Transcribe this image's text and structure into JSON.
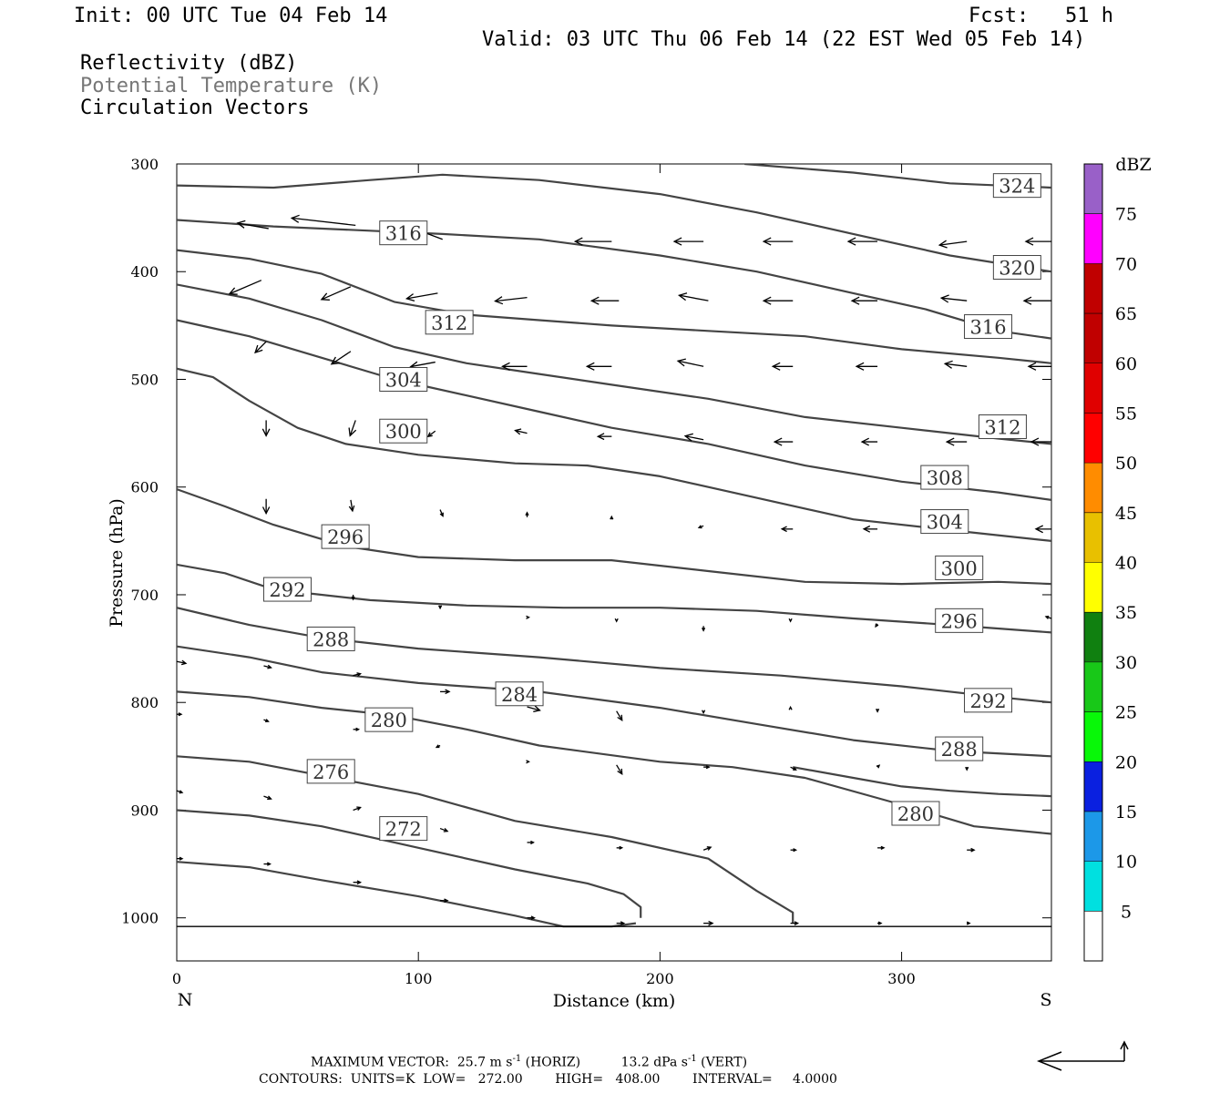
{
  "header": {
    "init": "Init: 00 UTC Tue 04 Feb 14",
    "fcst": "Fcst:   51 h",
    "valid": "Valid: 03 UTC Thu 06 Feb 14 (22 EST Wed 05 Feb 14)",
    "fields": [
      "Reflectivity (dBZ)",
      "Potential Temperature (K)",
      "Circulation Vectors"
    ]
  },
  "footer": {
    "max_vector_label": "MAXIMUM VECTOR:",
    "horiz": "25.7 m s",
    "horiz_unit": "(HORIZ)",
    "vert": "13.2 dPa s",
    "vert_unit": "(VERT)",
    "superscript": "-1",
    "contours": "CONTOURS:  UNITS=K  LOW=   272.00        HIGH=   408.00        INTERVAL=     4.0000"
  },
  "chart_data": {
    "type": "line",
    "subtype": "vertical cross-section (isentropes + circulation vectors + reflectivity)",
    "xlabel": "Distance (km)",
    "ylabel": "Pressure (hPa)",
    "xlim": [
      0,
      362
    ],
    "ylim": [
      1040,
      300
    ],
    "x_ticks": [
      0,
      100,
      200,
      300
    ],
    "y_ticks": [
      300,
      400,
      500,
      600,
      700,
      800,
      900,
      1000
    ],
    "x_end_labels": {
      "left": "N",
      "right": "S"
    },
    "contour_units": "K",
    "contour_interval": 4,
    "series": [
      {
        "name": "272",
        "x": [
          0,
          30,
          60,
          100,
          140,
          160,
          180,
          190
        ],
        "y": [
          948,
          953,
          965,
          980,
          998,
          1008,
          1008,
          1005
        ]
      },
      {
        "name": "276",
        "x": [
          0,
          30,
          60,
          100,
          140,
          170,
          185,
          192,
          192
        ],
        "y": [
          900,
          905,
          915,
          935,
          955,
          968,
          978,
          990,
          1000
        ]
      },
      {
        "name": "280",
        "x": [
          0,
          30,
          60,
          100,
          140,
          180,
          220,
          240,
          255,
          255
        ],
        "y": [
          850,
          855,
          868,
          885,
          910,
          925,
          945,
          975,
          995,
          1005
        ]
      },
      {
        "name": "280",
        "x": [
          255,
          280,
          300,
          320,
          340,
          362
        ],
        "y": [
          860,
          870,
          878,
          882,
          885,
          887
        ]
      },
      {
        "name": "284",
        "x": [
          0,
          30,
          60,
          90,
          120,
          150,
          200,
          230,
          260,
          300,
          330,
          362
        ],
        "y": [
          790,
          795,
          805,
          812,
          825,
          840,
          855,
          860,
          870,
          895,
          915,
          922
        ]
      },
      {
        "name": "288",
        "x": [
          0,
          30,
          60,
          100,
          150,
          200,
          240,
          280,
          320,
          362
        ],
        "y": [
          748,
          758,
          772,
          782,
          790,
          805,
          820,
          835,
          845,
          850
        ]
      },
      {
        "name": "292",
        "x": [
          0,
          30,
          60,
          100,
          150,
          200,
          250,
          300,
          340,
          362
        ],
        "y": [
          712,
          728,
          740,
          750,
          758,
          768,
          775,
          785,
          795,
          800
        ]
      },
      {
        "name": "296",
        "x": [
          0,
          20,
          40,
          80,
          120,
          160,
          200,
          240,
          280,
          320,
          362
        ],
        "y": [
          672,
          680,
          695,
          705,
          710,
          712,
          712,
          715,
          722,
          728,
          735
        ]
      },
      {
        "name": "300",
        "x": [
          0,
          20,
          40,
          70,
          100,
          140,
          180,
          220,
          260,
          300,
          340,
          362
        ],
        "y": [
          602,
          618,
          635,
          655,
          665,
          668,
          668,
          678,
          688,
          690,
          688,
          690
        ]
      },
      {
        "name": "304",
        "x": [
          0,
          15,
          30,
          50,
          70,
          100,
          140,
          170,
          200,
          240,
          280,
          320,
          362
        ],
        "y": [
          490,
          498,
          520,
          545,
          560,
          570,
          578,
          580,
          590,
          610,
          630,
          640,
          650
        ]
      },
      {
        "name": "308",
        "x": [
          0,
          30,
          60,
          90,
          120,
          150,
          180,
          220,
          260,
          300,
          340,
          362
        ],
        "y": [
          445,
          460,
          480,
          500,
          515,
          530,
          545,
          560,
          580,
          595,
          605,
          612
        ]
      },
      {
        "name": "312",
        "x": [
          0,
          30,
          60,
          90,
          120,
          150,
          180,
          220,
          260,
          300,
          340,
          362
        ],
        "y": [
          412,
          425,
          445,
          470,
          485,
          495,
          505,
          518,
          535,
          545,
          555,
          560
        ]
      },
      {
        "name": "316",
        "x": [
          0,
          30,
          60,
          90,
          120,
          150,
          180,
          220,
          260,
          300,
          340,
          362
        ],
        "y": [
          380,
          388,
          402,
          428,
          440,
          445,
          450,
          455,
          460,
          472,
          480,
          485
        ]
      },
      {
        "name": "316",
        "x": [
          0,
          40,
          80,
          110,
          150,
          200,
          240,
          280,
          310,
          340,
          362
        ],
        "y": [
          352,
          358,
          362,
          365,
          370,
          385,
          400,
          420,
          435,
          455,
          462
        ]
      },
      {
        "name": "320",
        "x": [
          0,
          40,
          80,
          110,
          150,
          200,
          240,
          280,
          320,
          362
        ],
        "y": [
          320,
          322,
          315,
          310,
          315,
          328,
          345,
          365,
          385,
          400
        ]
      },
      {
        "name": "324",
        "x": [
          235,
          280,
          320,
          362
        ],
        "y": [
          300,
          308,
          318,
          322
        ]
      }
    ],
    "contour_labels": [
      {
        "text": "324",
        "x": 338,
        "y": 320
      },
      {
        "text": "320",
        "x": 338,
        "y": 396
      },
      {
        "text": "316",
        "x": 84,
        "y": 364
      },
      {
        "text": "316",
        "x": 326,
        "y": 451
      },
      {
        "text": "312",
        "x": 103,
        "y": 447
      },
      {
        "text": "312",
        "x": 332,
        "y": 544
      },
      {
        "text": "308",
        "x": 308,
        "y": 591
      },
      {
        "text": "304",
        "x": 84,
        "y": 500
      },
      {
        "text": "304",
        "x": 308,
        "y": 632
      },
      {
        "text": "300",
        "x": 84,
        "y": 548
      },
      {
        "text": "300",
        "x": 314,
        "y": 675
      },
      {
        "text": "296",
        "x": 60,
        "y": 646
      },
      {
        "text": "296",
        "x": 314,
        "y": 724
      },
      {
        "text": "292",
        "x": 36,
        "y": 695
      },
      {
        "text": "292",
        "x": 326,
        "y": 798
      },
      {
        "text": "288",
        "x": 54,
        "y": 741
      },
      {
        "text": "288",
        "x": 314,
        "y": 843
      },
      {
        "text": "284",
        "x": 132,
        "y": 792
      },
      {
        "text": "280",
        "x": 78,
        "y": 816
      },
      {
        "text": "280",
        "x": 296,
        "y": 903
      },
      {
        "text": "276",
        "x": 54,
        "y": 864
      },
      {
        "text": "272",
        "x": 84,
        "y": 917
      }
    ],
    "vectors": [
      {
        "x": 74,
        "y": 357,
        "dx": -70,
        "dy": -8
      },
      {
        "x": 38,
        "y": 360,
        "dx": -34,
        "dy": -6
      },
      {
        "x": 110,
        "y": 370,
        "dx": -40,
        "dy": -15
      },
      {
        "x": 180,
        "y": 372,
        "dx": -40,
        "dy": 0
      },
      {
        "x": 218,
        "y": 372,
        "dx": -32,
        "dy": 0
      },
      {
        "x": 255,
        "y": 372,
        "dx": -32,
        "dy": 0
      },
      {
        "x": 290,
        "y": 372,
        "dx": -32,
        "dy": 0
      },
      {
        "x": 327,
        "y": 372,
        "dx": -30,
        "dy": 4
      },
      {
        "x": 362,
        "y": 372,
        "dx": -28,
        "dy": 0
      },
      {
        "x": 35,
        "y": 408,
        "dx": -35,
        "dy": 15
      },
      {
        "x": 72,
        "y": 414,
        "dx": -32,
        "dy": 14
      },
      {
        "x": 108,
        "y": 420,
        "dx": -34,
        "dy": 6
      },
      {
        "x": 145,
        "y": 424,
        "dx": -35,
        "dy": 4
      },
      {
        "x": 183,
        "y": 427,
        "dx": -30,
        "dy": 0
      },
      {
        "x": 220,
        "y": 427,
        "dx": -32,
        "dy": -6
      },
      {
        "x": 255,
        "y": 427,
        "dx": -32,
        "dy": 0
      },
      {
        "x": 290,
        "y": 427,
        "dx": -28,
        "dy": 0
      },
      {
        "x": 327,
        "y": 427,
        "dx": -28,
        "dy": -3
      },
      {
        "x": 362,
        "y": 427,
        "dx": -30,
        "dy": 0
      },
      {
        "x": 37,
        "y": 465,
        "dx": -12,
        "dy": 12
      },
      {
        "x": 72,
        "y": 474,
        "dx": -21,
        "dy": 14
      },
      {
        "x": 107,
        "y": 484,
        "dx": -27,
        "dy": 5
      },
      {
        "x": 145,
        "y": 488,
        "dx": -27,
        "dy": 0
      },
      {
        "x": 180,
        "y": 488,
        "dx": -27,
        "dy": 0
      },
      {
        "x": 218,
        "y": 488,
        "dx": -28,
        "dy": -6
      },
      {
        "x": 255,
        "y": 488,
        "dx": -22,
        "dy": 0
      },
      {
        "x": 290,
        "y": 488,
        "dx": -23,
        "dy": 0
      },
      {
        "x": 327,
        "y": 488,
        "dx": -24,
        "dy": -3
      },
      {
        "x": 362,
        "y": 488,
        "dx": -25,
        "dy": 0
      },
      {
        "x": 37,
        "y": 538,
        "dx": 0,
        "dy": 17
      },
      {
        "x": 74,
        "y": 538,
        "dx": -6,
        "dy": 17
      },
      {
        "x": 107,
        "y": 548,
        "dx": -8,
        "dy": 6
      },
      {
        "x": 145,
        "y": 550,
        "dx": -13,
        "dy": -3
      },
      {
        "x": 180,
        "y": 553,
        "dx": -15,
        "dy": 0
      },
      {
        "x": 218,
        "y": 556,
        "dx": -20,
        "dy": -4
      },
      {
        "x": 255,
        "y": 558,
        "dx": -20,
        "dy": 0
      },
      {
        "x": 290,
        "y": 558,
        "dx": -17,
        "dy": 0
      },
      {
        "x": 327,
        "y": 558,
        "dx": -22,
        "dy": 0
      },
      {
        "x": 362,
        "y": 558,
        "dx": -22,
        "dy": 0
      },
      {
        "x": 37,
        "y": 611,
        "dx": 0,
        "dy": 16
      },
      {
        "x": 72,
        "y": 612,
        "dx": 2,
        "dy": 12
      },
      {
        "x": 109,
        "y": 621,
        "dx": 3,
        "dy": 7
      },
      {
        "x": 145,
        "y": 628,
        "dx": 0,
        "dy": -5
      },
      {
        "x": 180,
        "y": 630,
        "dx": 0,
        "dy": -3
      },
      {
        "x": 218,
        "y": 636,
        "dx": -5,
        "dy": 2
      },
      {
        "x": 255,
        "y": 639,
        "dx": -12,
        "dy": 0
      },
      {
        "x": 290,
        "y": 639,
        "dx": -15,
        "dy": 0
      },
      {
        "x": 327,
        "y": 639,
        "dx": -22,
        "dy": 0
      },
      {
        "x": 362,
        "y": 639,
        "dx": -17,
        "dy": 0
      },
      {
        "x": 73,
        "y": 700,
        "dx": 0,
        "dy": 5
      },
      {
        "x": 109,
        "y": 710,
        "dx": 0,
        "dy": 3
      },
      {
        "x": 145,
        "y": 721,
        "dx": 2,
        "dy": 0
      },
      {
        "x": 182,
        "y": 723,
        "dx": 0,
        "dy": 2
      },
      {
        "x": 218,
        "y": 729,
        "dx": 0,
        "dy": 5
      },
      {
        "x": 254,
        "y": 723,
        "dx": 0,
        "dy": 2
      },
      {
        "x": 290,
        "y": 727,
        "dx": -2,
        "dy": 3
      },
      {
        "x": 362,
        "y": 722,
        "dx": -6,
        "dy": -2
      },
      {
        "x": 0,
        "y": 762,
        "dx": 10,
        "dy": 2
      },
      {
        "x": 36,
        "y": 766,
        "dx": 8,
        "dy": 2
      },
      {
        "x": 73,
        "y": 775,
        "dx": 8,
        "dy": -2
      },
      {
        "x": 109,
        "y": 790,
        "dx": 10,
        "dy": 0
      },
      {
        "x": 145,
        "y": 804,
        "dx": 14,
        "dy": 4
      },
      {
        "x": 182,
        "y": 808,
        "dx": 6,
        "dy": 10
      },
      {
        "x": 218,
        "y": 808,
        "dx": 0,
        "dy": 2
      },
      {
        "x": 254,
        "y": 806,
        "dx": 0,
        "dy": -2
      },
      {
        "x": 290,
        "y": 806,
        "dx": 0,
        "dy": 3
      },
      {
        "x": 327,
        "y": 806,
        "dx": 0,
        "dy": 3
      },
      {
        "x": 0,
        "y": 811,
        "dx": 5,
        "dy": 0
      },
      {
        "x": 36,
        "y": 816,
        "dx": 5,
        "dy": 2
      },
      {
        "x": 73,
        "y": 825,
        "dx": 6,
        "dy": 0
      },
      {
        "x": 109,
        "y": 840,
        "dx": -4,
        "dy": 2
      },
      {
        "x": 145,
        "y": 855,
        "dx": 2,
        "dy": 0
      },
      {
        "x": 182,
        "y": 858,
        "dx": 6,
        "dy": 10
      },
      {
        "x": 218,
        "y": 860,
        "dx": 6,
        "dy": 0
      },
      {
        "x": 254,
        "y": 860,
        "dx": 6,
        "dy": 3
      },
      {
        "x": 290,
        "y": 860,
        "dx": 2,
        "dy": -2
      },
      {
        "x": 327,
        "y": 860,
        "dx": 0,
        "dy": 3
      },
      {
        "x": 0,
        "y": 882,
        "dx": 6,
        "dy": 2
      },
      {
        "x": 36,
        "y": 887,
        "dx": 8,
        "dy": 3
      },
      {
        "x": 73,
        "y": 900,
        "dx": 8,
        "dy": -3
      },
      {
        "x": 109,
        "y": 917,
        "dx": 8,
        "dy": 3
      },
      {
        "x": 145,
        "y": 930,
        "dx": 7,
        "dy": 0
      },
      {
        "x": 182,
        "y": 935,
        "dx": 6,
        "dy": 0
      },
      {
        "x": 218,
        "y": 937,
        "dx": 8,
        "dy": -3
      },
      {
        "x": 254,
        "y": 937,
        "dx": 6,
        "dy": 0
      },
      {
        "x": 290,
        "y": 935,
        "dx": 7,
        "dy": 0
      },
      {
        "x": 327,
        "y": 937,
        "dx": 8,
        "dy": 0
      },
      {
        "x": 0,
        "y": 945,
        "dx": 6,
        "dy": 0
      },
      {
        "x": 36,
        "y": 950,
        "dx": 7,
        "dy": 0
      },
      {
        "x": 73,
        "y": 967,
        "dx": 8,
        "dy": 0
      },
      {
        "x": 109,
        "y": 984,
        "dx": 8,
        "dy": 0
      },
      {
        "x": 145,
        "y": 1000,
        "dx": 8,
        "dy": 0
      },
      {
        "x": 182,
        "y": 1005,
        "dx": 8,
        "dy": 0
      },
      {
        "x": 218,
        "y": 1005,
        "dx": 10,
        "dy": 0
      },
      {
        "x": 254,
        "y": 1005,
        "dx": 8,
        "dy": 0
      },
      {
        "x": 290,
        "y": 1005,
        "dx": 4,
        "dy": 0
      },
      {
        "x": 327,
        "y": 1005,
        "dx": 3,
        "dy": 0
      }
    ],
    "ground_line": {
      "x": [
        0,
        150,
        160,
        362
      ],
      "y": [
        1008,
        1008,
        1008,
        1008
      ]
    },
    "colorbar": {
      "title": "dBZ",
      "levels": [
        5,
        10,
        15,
        20,
        25,
        30,
        35,
        40,
        45,
        50,
        55,
        60,
        65,
        70,
        75
      ],
      "colors": [
        "#00e0e0",
        "#1c98e8",
        "#0a20e0",
        "#08f808",
        "#18c818",
        "#108010",
        "#ffff00",
        "#e8c000",
        "#ff8c00",
        "#ff0000",
        "#e00000",
        "#c00000",
        "#c00000",
        "#ff00ff",
        "#9960c8"
      ],
      "top_color": "#ffffff",
      "bottom_color": "#ffffff"
    },
    "reference_vector": {
      "horizontal": 25.7,
      "vertical": 13.2
    }
  }
}
